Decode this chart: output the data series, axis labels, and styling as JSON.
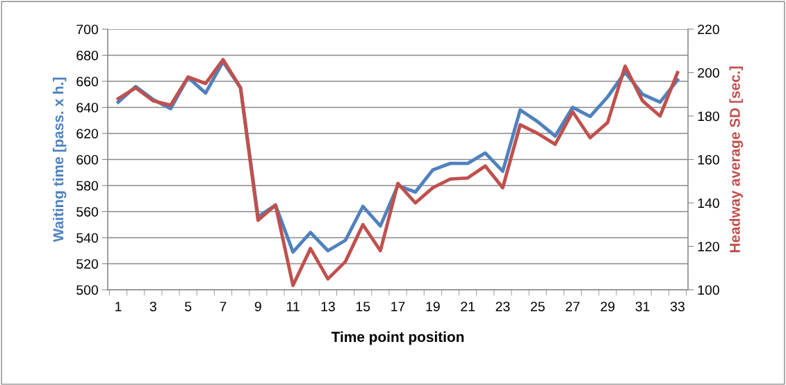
{
  "chart_data": {
    "type": "line",
    "xlabel": "Time point position",
    "ylabel": "Waiting time [pass. x h.]",
    "y2label": "Headway average SD [sec.]",
    "categories": [
      "1",
      null,
      "3",
      null,
      "5",
      null,
      "7",
      null,
      "9",
      null,
      "11",
      null,
      "13",
      null,
      "15",
      null,
      "17",
      null,
      "19",
      null,
      "21",
      null,
      "23",
      null,
      "25",
      null,
      "27",
      null,
      "29",
      null,
      "31",
      null,
      "33"
    ],
    "series": [
      {
        "color": "#4f81bd",
        "values": [
          644,
          656,
          646,
          639,
          663,
          651,
          675,
          655,
          556,
          565,
          529,
          544,
          530,
          538,
          564,
          549,
          580,
          575,
          592,
          597,
          597,
          605,
          591,
          638,
          629,
          618,
          640,
          633,
          648,
          667,
          650,
          644,
          661
        ]
      },
      {
        "color": "#c0504d",
        "axis": "y2",
        "values": [
          188,
          193,
          187,
          185,
          198,
          195,
          206,
          193,
          132,
          139,
          102,
          119,
          105,
          113,
          130,
          118,
          149,
          140,
          147,
          151,
          151.5,
          157,
          147,
          176,
          172,
          167,
          182,
          170,
          177,
          203,
          187,
          180,
          200
        ]
      }
    ],
    "ylim": [
      500,
      700
    ],
    "yticks": [
      500,
      520,
      540,
      560,
      580,
      600,
      620,
      640,
      660,
      680,
      700
    ],
    "y2lim": [
      100,
      220
    ],
    "y2ticks": [
      100,
      120,
      140,
      160,
      180,
      200,
      220
    ],
    "grid": "y",
    "marker": "none",
    "line_style": "solid"
  }
}
